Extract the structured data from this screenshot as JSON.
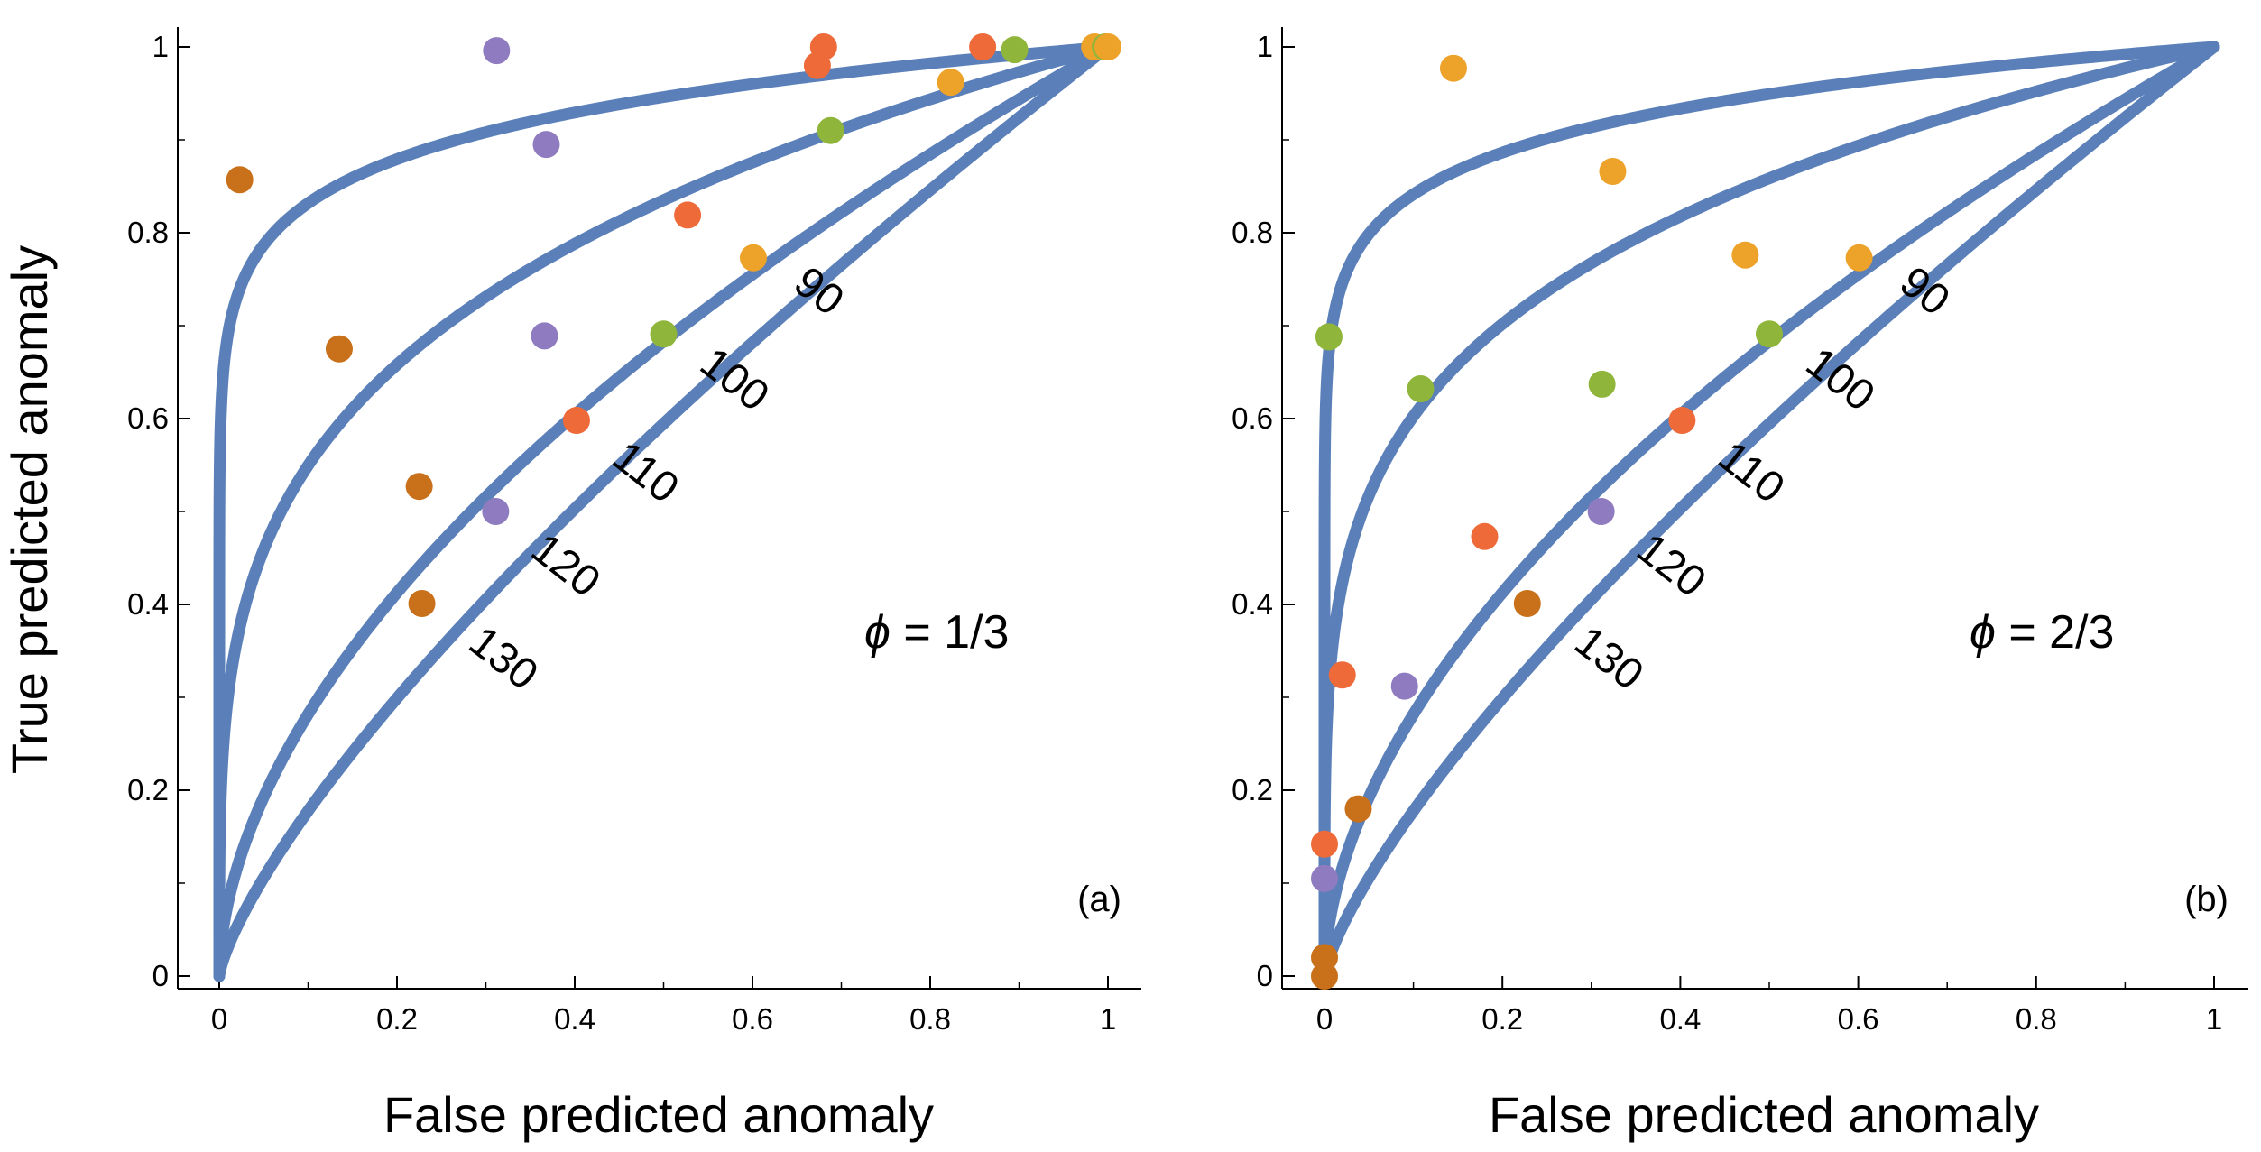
{
  "colors": {
    "curve": "#5b80b9",
    "axis": "#000000",
    "background": "#ffffff"
  },
  "ylabel": "True predicted anomaly",
  "chart_data": [
    {
      "type": "line",
      "panel_tag": "(a)",
      "phi_symbol": "ϕ",
      "phi_text": " = 1/3",
      "xlabel": "False predicted anomaly",
      "ylabel": "True predicted anomaly",
      "xlim": [
        0,
        1
      ],
      "ylim": [
        0,
        1
      ],
      "xticks": [
        0,
        0.2,
        0.4,
        0.6,
        0.8,
        1
      ],
      "xtick_labels": [
        "0",
        "0.2",
        "0.4",
        "0.6",
        "0.8",
        "1"
      ],
      "yticks": [
        0,
        0.2,
        0.4,
        0.6,
        0.8,
        1
      ],
      "ytick_labels": [
        "0",
        "0.2",
        "0.4",
        "0.6",
        "0.8",
        "1"
      ],
      "series": [
        {
          "name": "130",
          "exponent": 0.08,
          "label": "130",
          "label_at": [
            0.31,
            0.33
          ],
          "markers": [
            {
              "x": 0.023,
              "y": 0.857,
              "color": "#c8701a"
            },
            {
              "x": 0.312,
              "y": 0.996,
              "color": "#8f7bbf"
            },
            {
              "x": 0.68,
              "y": 1.0,
              "color": "#ee6a38"
            },
            {
              "x": 0.985,
              "y": 1.0,
              "color": "#eda32a"
            },
            {
              "x": 0.997,
              "y": 1.0,
              "color": "#8fb53a"
            }
          ]
        },
        {
          "name": "120",
          "exponent": 0.26,
          "label": "120",
          "label_at": [
            0.38,
            0.43
          ],
          "markers": [
            {
              "x": 0.135,
              "y": 0.675,
              "color": "#c8701a"
            },
            {
              "x": 0.368,
              "y": 0.895,
              "color": "#8f7bbf"
            },
            {
              "x": 0.673,
              "y": 0.98,
              "color": "#ee6a38"
            },
            {
              "x": 0.895,
              "y": 0.997,
              "color": "#8fb53a"
            },
            {
              "x": 1.0,
              "y": 1.0,
              "color": "#eda32a"
            }
          ]
        },
        {
          "name": "110",
          "exponent": 0.55,
          "label": "110",
          "label_at": [
            0.47,
            0.53
          ],
          "markers": [
            {
              "x": 0.225,
              "y": 0.527,
              "color": "#c8701a"
            },
            {
              "x": 0.366,
              "y": 0.689,
              "color": "#8f7bbf"
            },
            {
              "x": 0.527,
              "y": 0.819,
              "color": "#ee6a38"
            },
            {
              "x": 0.688,
              "y": 0.91,
              "color": "#8fb53a"
            },
            {
              "x": 0.823,
              "y": 0.962,
              "color": "#eda32a"
            },
            {
              "x": 0.859,
              "y": 1.0,
              "color": "#ee6a38"
            }
          ]
        },
        {
          "name": "100",
          "exponent": 0.75,
          "label": "100",
          "label_at": [
            0.57,
            0.63
          ],
          "markers": [
            {
              "x": 0.228,
              "y": 0.401,
              "color": "#c8701a"
            },
            {
              "x": 0.311,
              "y": 0.5,
              "color": "#8f7bbf"
            },
            {
              "x": 0.402,
              "y": 0.598,
              "color": "#ee6a38"
            },
            {
              "x": 0.5,
              "y": 0.691,
              "color": "#8fb53a"
            },
            {
              "x": 0.601,
              "y": 0.773,
              "color": "#eda32a"
            }
          ]
        },
        {
          "name": "90",
          "exponent": 0.75,
          "label": "90",
          "label_at": [
            0.665,
            0.725
          ],
          "markers": []
        }
      ]
    },
    {
      "type": "line",
      "panel_tag": "(b)",
      "phi_symbol": "ϕ",
      "phi_text": " = 2/3",
      "xlabel": "False predicted anomaly",
      "ylabel": "True predicted anomaly",
      "xlim": [
        0,
        1
      ],
      "ylim": [
        0,
        1
      ],
      "xticks": [
        0,
        0.2,
        0.4,
        0.6,
        0.8,
        1
      ],
      "xtick_labels": [
        "0",
        "0.2",
        "0.4",
        "0.6",
        "0.8",
        "1"
      ],
      "yticks": [
        0,
        0.2,
        0.4,
        0.6,
        0.8,
        1
      ],
      "ytick_labels": [
        "0",
        "0.2",
        "0.4",
        "0.6",
        "0.8",
        "1"
      ],
      "series": [
        {
          "name": "130",
          "exponent": 0.075,
          "label": "130",
          "label_at": [
            0.31,
            0.33
          ],
          "markers": [
            {
              "x": 0.0,
              "y": 0.0,
              "color": "#c8701a"
            },
            {
              "x": 0.0,
              "y": 0.02,
              "color": "#c8701a"
            },
            {
              "x": 0.0,
              "y": 0.105,
              "color": "#8f7bbf"
            },
            {
              "x": 0.0,
              "y": 0.142,
              "color": "#ee6a38"
            },
            {
              "x": 0.005,
              "y": 0.688,
              "color": "#8fb53a"
            },
            {
              "x": 0.145,
              "y": 0.977,
              "color": "#eda32a"
            }
          ]
        },
        {
          "name": "120",
          "exponent": 0.22,
          "label": "120",
          "label_at": [
            0.38,
            0.43
          ],
          "markers": [
            {
              "x": 0.02,
              "y": 0.324,
              "color": "#ee6a38"
            },
            {
              "x": 0.108,
              "y": 0.632,
              "color": "#8fb53a"
            },
            {
              "x": 0.324,
              "y": 0.866,
              "color": "#eda32a"
            }
          ]
        },
        {
          "name": "110",
          "exponent": 0.55,
          "label": "110",
          "label_at": [
            0.47,
            0.53
          ],
          "markers": [
            {
              "x": 0.038,
              "y": 0.18,
              "color": "#c8701a"
            },
            {
              "x": 0.09,
              "y": 0.312,
              "color": "#8f7bbf"
            },
            {
              "x": 0.18,
              "y": 0.473,
              "color": "#ee6a38"
            },
            {
              "x": 0.312,
              "y": 0.637,
              "color": "#8fb53a"
            },
            {
              "x": 0.473,
              "y": 0.776,
              "color": "#eda32a"
            }
          ]
        },
        {
          "name": "100",
          "exponent": 0.75,
          "label": "100",
          "label_at": [
            0.57,
            0.63
          ],
          "markers": [
            {
              "x": 0.228,
              "y": 0.401,
              "color": "#c8701a"
            },
            {
              "x": 0.311,
              "y": 0.5,
              "color": "#8f7bbf"
            },
            {
              "x": 0.402,
              "y": 0.598,
              "color": "#ee6a38"
            },
            {
              "x": 0.5,
              "y": 0.691,
              "color": "#8fb53a"
            },
            {
              "x": 0.601,
              "y": 0.773,
              "color": "#eda32a"
            }
          ]
        },
        {
          "name": "90",
          "exponent": 0.75,
          "label": "90",
          "label_at": [
            0.665,
            0.725
          ],
          "markers": []
        }
      ]
    }
  ]
}
